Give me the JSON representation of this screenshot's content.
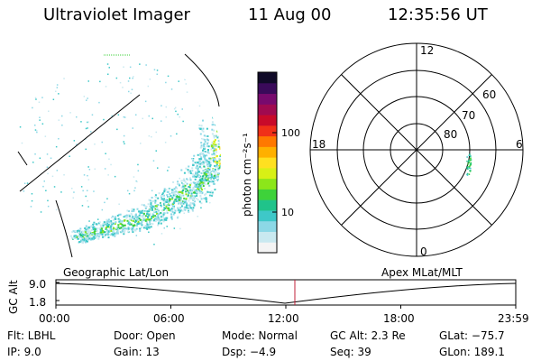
{
  "header": {
    "instrument": "Ultraviolet Imager",
    "date": "11 Aug 00",
    "time": "12:35:56 UT"
  },
  "colorbar": {
    "label": "photon cm⁻²s⁻¹",
    "ticks": [
      "100",
      "10"
    ],
    "colors": [
      "#f4f4f4",
      "#c9e9f0",
      "#8cd8e6",
      "#3ec8c8",
      "#20c38a",
      "#3ed23a",
      "#8ce61a",
      "#d8f016",
      "#ffe020",
      "#ffb000",
      "#ff7800",
      "#f03018",
      "#c80a2a",
      "#a00a50",
      "#780a6e",
      "#3a0a5a",
      "#100a28"
    ]
  },
  "polar": {
    "labels_mlt": {
      "top": "12",
      "left": "18",
      "right": "6",
      "bottom": "0"
    },
    "labels_lat": [
      "60",
      "70",
      "80"
    ]
  },
  "timeline": {
    "axis_label": "GC Alt",
    "y_ticks": [
      "9.0",
      "1.8"
    ],
    "left_label": "Geographic Lat/Lon",
    "right_label": "Apex MLat/MLT",
    "x_ticks": [
      "00:00",
      "06:00",
      "12:00",
      "18:00",
      "23:59"
    ]
  },
  "info": {
    "row1": [
      "Flt: LBHL",
      "Door: Open",
      "Mode: Normal",
      "GC Alt: 2.3 Re",
      "GLat: −75.7"
    ],
    "row2": [
      "IP:  9.0",
      "Gain: 13",
      "Dsp:    −4.9",
      "Seq: 39",
      "GLon: 189.1"
    ]
  }
}
